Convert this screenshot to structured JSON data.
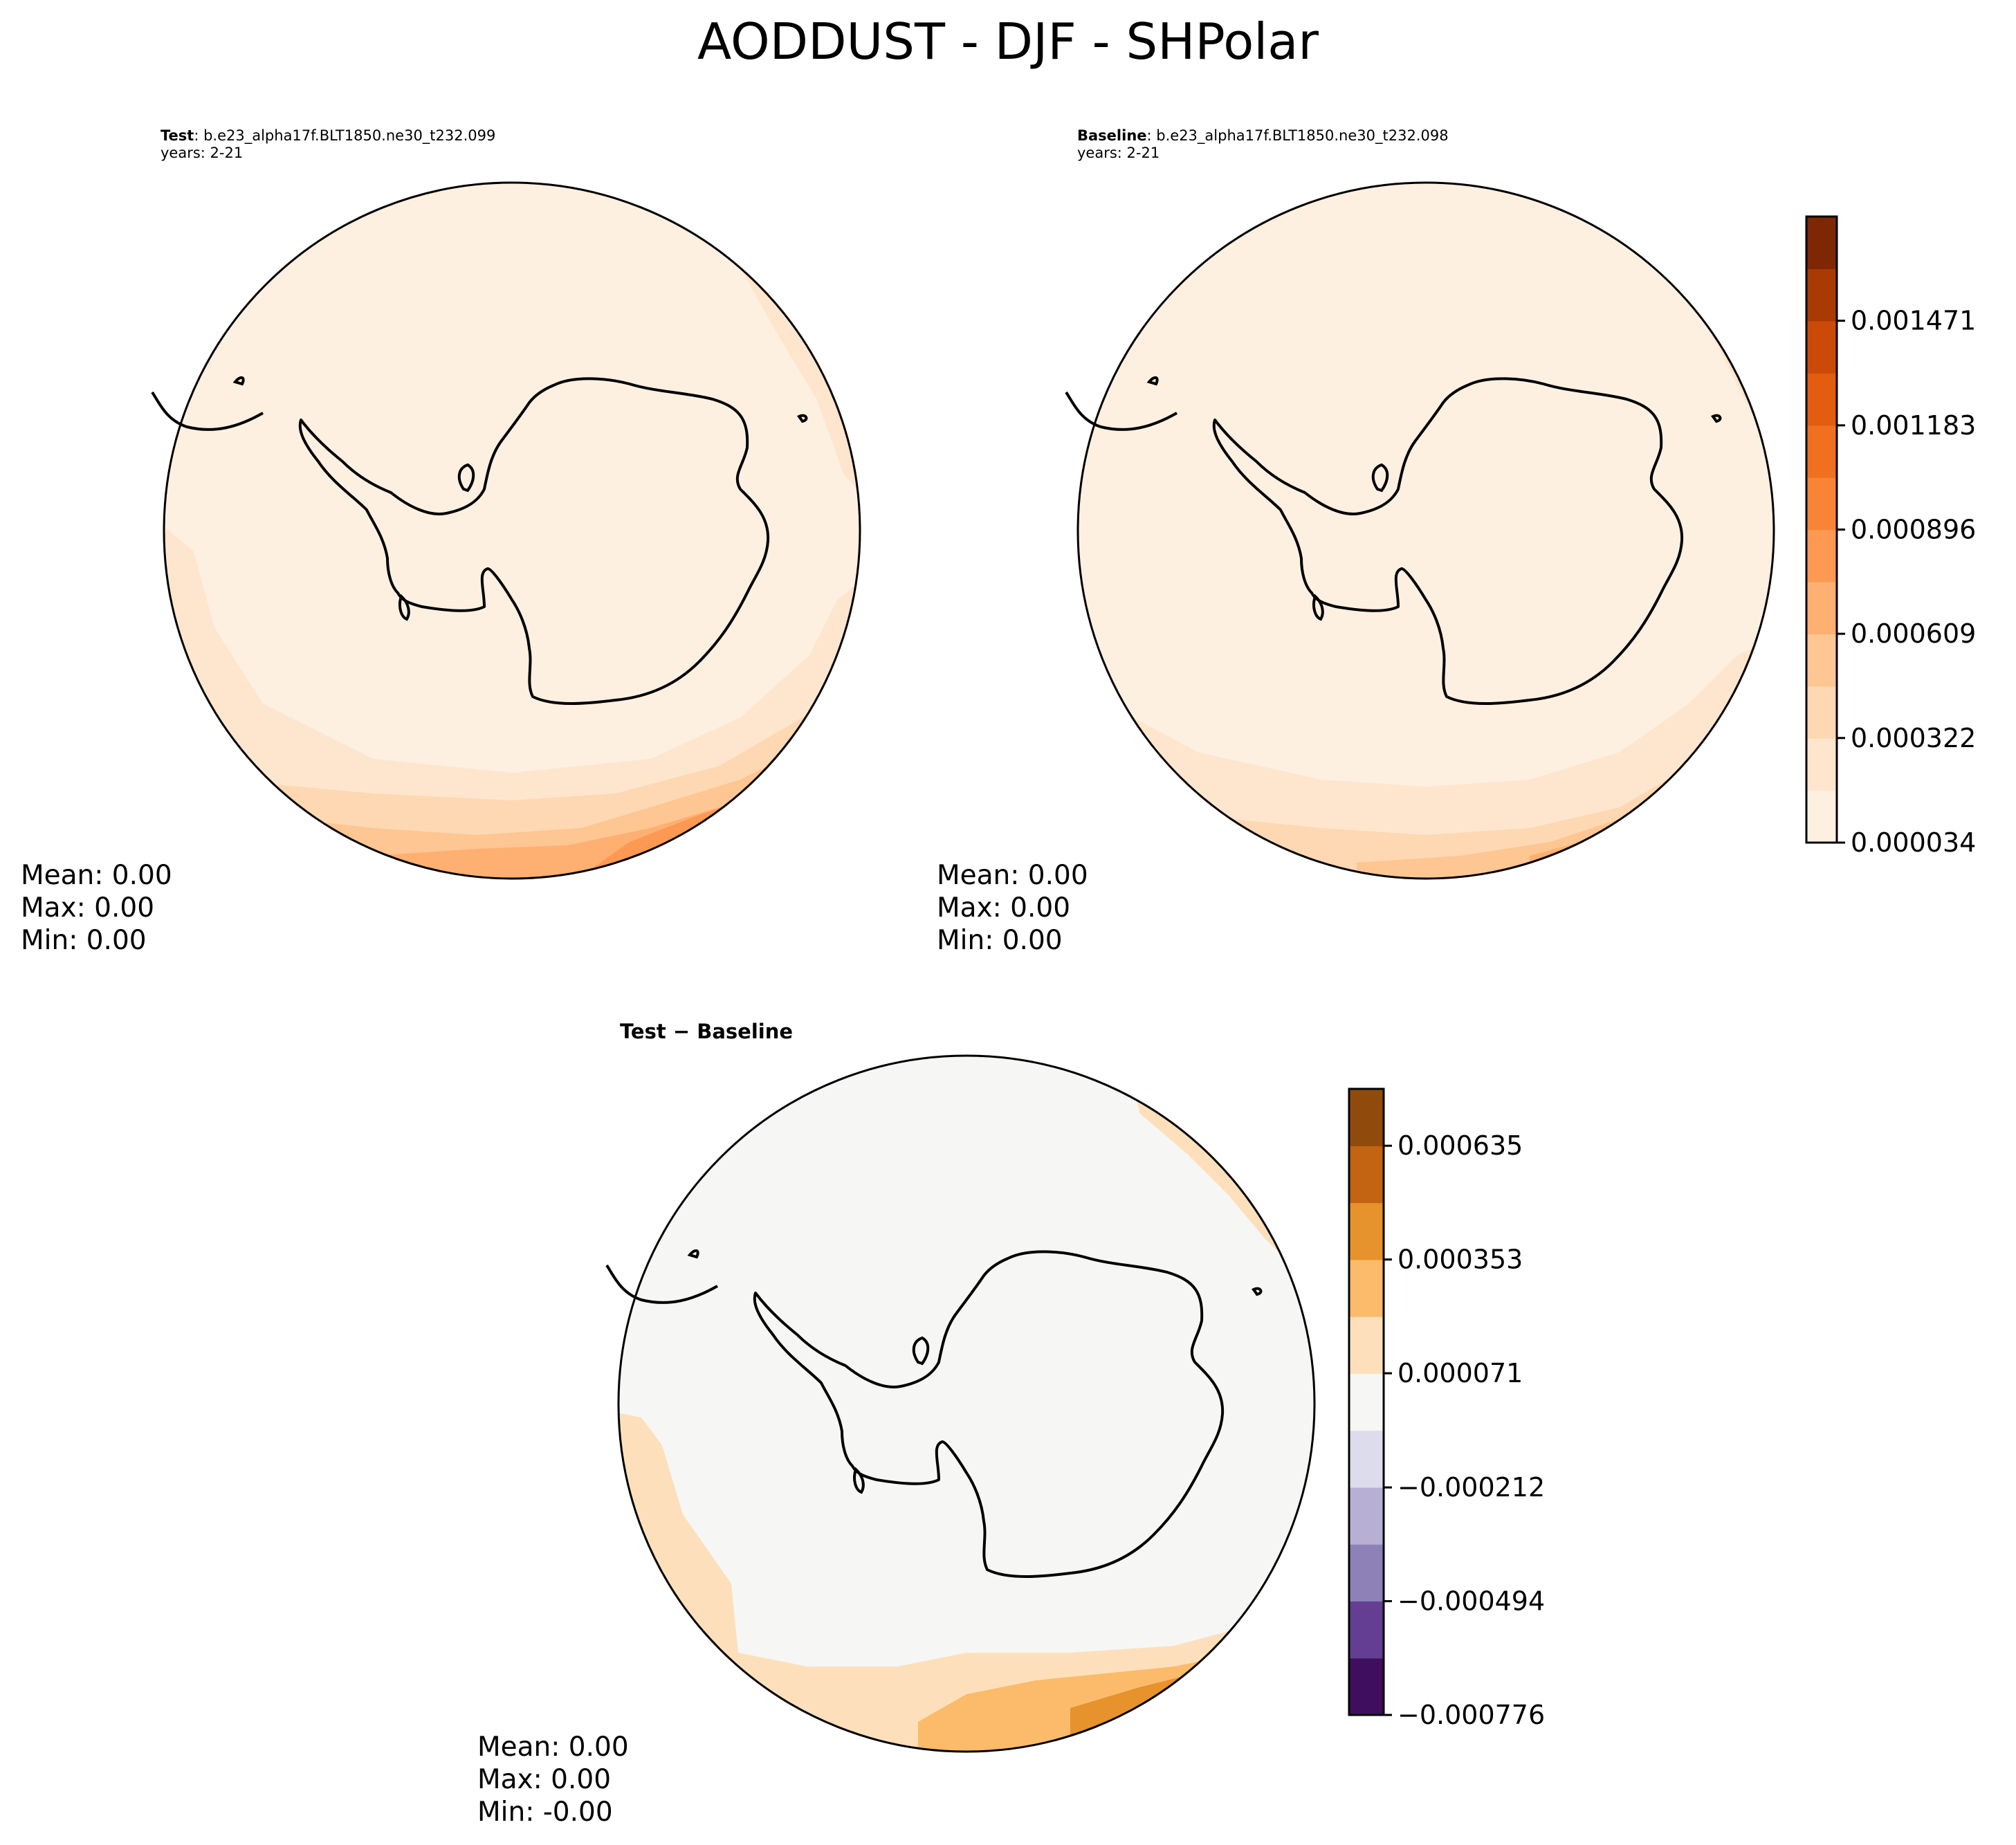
{
  "figure": {
    "title": "AODDUST - DJF - SHPolar"
  },
  "chart_data": [
    {
      "type": "filled-contour",
      "projection": "south-polar-stereographic",
      "panel": "test",
      "header_label": "Test",
      "header_case": ": b.e23_alpha17f.BLT1850.ne30_t232.099",
      "years": "years: 2-21",
      "stats": {
        "mean": "Mean:  0.00",
        "max": "Max:  0.00",
        "min": "Min:  0.00"
      },
      "colorbar": "shared_oranges",
      "colors": [
        "#fef0e1",
        "#fde4c9",
        "#fdd2a4",
        "#fdbc7f",
        "#fd9f58",
        "#f98633",
        "#ee6a16",
        "#da510b",
        "#b53d04",
        "#8a2a04"
      ],
      "bands": [
        {
          "level": 0,
          "rows": [
            [
              0,
              0.0
            ],
            [
              8,
              0.0
            ]
          ]
        },
        {
          "level": 1,
          "rows": [
            [
              8,
              1.0
            ],
            [
              12,
              1.0
            ]
          ]
        }
      ]
    },
    {
      "type": "filled-contour",
      "projection": "south-polar-stereographic",
      "panel": "baseline",
      "header_label": "Baseline",
      "header_case": ": b.e23_alpha17f.BLT1850.ne30_t232.098",
      "years": "years: 2-21",
      "stats": {
        "mean": "Mean:  0.00",
        "max": "Max:  0.00",
        "min": "Min:  0.00"
      },
      "colorbar": "shared_oranges"
    },
    {
      "type": "filled-contour",
      "projection": "south-polar-stereographic",
      "panel": "difference",
      "title": "Test − Baseline",
      "stats": {
        "mean": "Mean:  0.00",
        "max": "Max:  0.00",
        "min": "Min: -0.00"
      },
      "colorbar": "diff_puor"
    }
  ],
  "colorbars": {
    "shared_oranges": {
      "levels_min": 3.4e-05,
      "levels_max": 0.001758,
      "n_bands": 12,
      "colors": [
        "#fef0e1",
        "#fee6ce",
        "#fdd8b2",
        "#fdc692",
        "#fdb071",
        "#fd9952",
        "#f98436",
        "#f0701f",
        "#e35c0f",
        "#cc4a07",
        "#a93a04",
        "#7f2704"
      ],
      "tick_values": [
        3.4e-05,
        0.000322,
        0.000609,
        0.000896,
        0.001183,
        0.001471
      ],
      "tick_labels": [
        "0.000034",
        "0.000322",
        "0.000609",
        "0.000896",
        "0.001183",
        "0.001471"
      ]
    },
    "diff_puor": {
      "levels_min": -0.000776,
      "levels_max": 0.000776,
      "n_bands": 11,
      "colors": [
        "#3f0f5e",
        "#633e93",
        "#8d81b7",
        "#b7b0d4",
        "#dcdcec",
        "#f6f6f5",
        "#fde0bb",
        "#fbbb6a",
        "#e6922d",
        "#c26412",
        "#904b0c"
      ],
      "tick_values": [
        -0.000776,
        -0.000494,
        -0.000212,
        7.1e-05,
        0.000353,
        0.000635
      ],
      "tick_labels": [
        "−0.000776",
        "−0.000494",
        "−0.000212",
        "0.000071",
        "0.000353",
        "0.000635"
      ]
    }
  }
}
